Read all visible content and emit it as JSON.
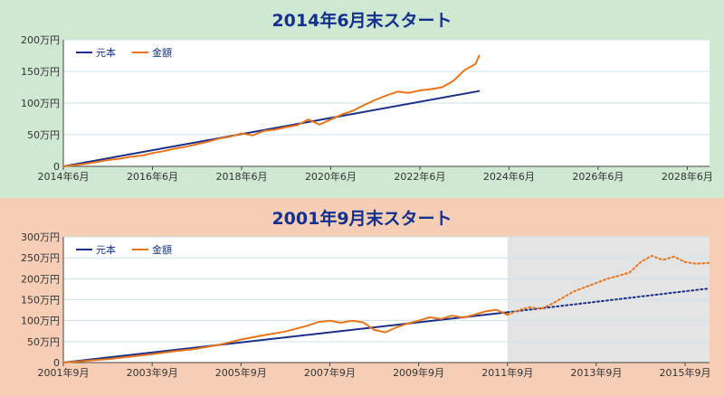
{
  "colors": {
    "principal": "#1b2f8a",
    "amount": "#e8751a",
    "panel1_bg": "#cfe8d2",
    "panel2_bg": "#f6cdb5",
    "forecast_bg": "#e4e4e4",
    "title": "#13308f"
  },
  "chart_data": [
    {
      "type": "line",
      "title": "2014年6月末スタート",
      "ylim": [
        0,
        200
      ],
      "yticks": [
        "0",
        "50万円",
        "100万円",
        "150万円",
        "200万円"
      ],
      "ytick_values": [
        0,
        50,
        100,
        150,
        200
      ],
      "xlim": [
        2014.5,
        2029.0
      ],
      "xticks": [
        "2014年6月",
        "2016年6月",
        "2018年6月",
        "2020年6月",
        "2022年6月",
        "2024年6月",
        "2026年6月",
        "2028年6月"
      ],
      "xtick_values": [
        2014.5,
        2016.5,
        2018.5,
        2020.5,
        2022.5,
        2024.5,
        2026.5,
        2028.5
      ],
      "grid": true,
      "legend": "top-left",
      "forecast_start": null,
      "series": [
        {
          "name": "元本",
          "color": "#1b2f8a",
          "style": "solid",
          "points": [
            [
              2014.5,
              0
            ],
            [
              2023.83,
              119
            ]
          ]
        },
        {
          "name": "金額",
          "color": "#e8751a",
          "style": "solid",
          "points": [
            [
              2014.5,
              0
            ],
            [
              2014.75,
              2
            ],
            [
              2015.0,
              4
            ],
            [
              2015.25,
              7
            ],
            [
              2015.5,
              10
            ],
            [
              2015.75,
              12
            ],
            [
              2016.0,
              15
            ],
            [
              2016.25,
              17
            ],
            [
              2016.5,
              21
            ],
            [
              2016.75,
              24
            ],
            [
              2017.0,
              28
            ],
            [
              2017.25,
              31
            ],
            [
              2017.5,
              35
            ],
            [
              2017.75,
              39
            ],
            [
              2018.0,
              44
            ],
            [
              2018.25,
              47
            ],
            [
              2018.5,
              52
            ],
            [
              2018.75,
              49
            ],
            [
              2019.0,
              56
            ],
            [
              2019.25,
              58
            ],
            [
              2019.5,
              62
            ],
            [
              2019.75,
              65
            ],
            [
              2020.0,
              74
            ],
            [
              2020.25,
              66
            ],
            [
              2020.5,
              74
            ],
            [
              2020.75,
              82
            ],
            [
              2021.0,
              88
            ],
            [
              2021.25,
              97
            ],
            [
              2021.5,
              105
            ],
            [
              2021.75,
              112
            ],
            [
              2022.0,
              118
            ],
            [
              2022.25,
              116
            ],
            [
              2022.5,
              120
            ],
            [
              2022.75,
              122
            ],
            [
              2023.0,
              125
            ],
            [
              2023.25,
              135
            ],
            [
              2023.5,
              152
            ],
            [
              2023.75,
              162
            ],
            [
              2023.83,
              175
            ]
          ]
        }
      ]
    },
    {
      "type": "line",
      "title": "2001年9月末スタート",
      "ylim": [
        0,
        300
      ],
      "yticks": [
        "0",
        "50万円",
        "100万円",
        "150万円",
        "200万円",
        "250万円",
        "300万円"
      ],
      "ytick_values": [
        0,
        50,
        100,
        150,
        200,
        250,
        300
      ],
      "xlim": [
        2001.75,
        2016.3
      ],
      "xticks": [
        "2001年9月",
        "2003年9月",
        "2005年9月",
        "2007年9月",
        "2009年9月",
        "2011年9月",
        "2013年9月",
        "2015年9月"
      ],
      "xtick_values": [
        2001.75,
        2003.75,
        2005.75,
        2007.75,
        2009.75,
        2011.75,
        2013.75,
        2015.75
      ],
      "grid": true,
      "legend": "top-left",
      "forecast_start": 2011.75,
      "series": [
        {
          "name": "元本",
          "color": "#1b2f8a",
          "style": "solid",
          "points": [
            [
              2001.75,
              0
            ],
            [
              2011.75,
              120
            ]
          ]
        },
        {
          "name": "金額",
          "color": "#e8751a",
          "style": "solid",
          "points": [
            [
              2001.75,
              0
            ],
            [
              2002.25,
              4
            ],
            [
              2002.75,
              8
            ],
            [
              2003.25,
              14
            ],
            [
              2003.75,
              20
            ],
            [
              2004.25,
              27
            ],
            [
              2004.75,
              33
            ],
            [
              2005.25,
              42
            ],
            [
              2005.75,
              55
            ],
            [
              2006.25,
              65
            ],
            [
              2006.75,
              74
            ],
            [
              2007.25,
              88
            ],
            [
              2007.5,
              97
            ],
            [
              2007.75,
              100
            ],
            [
              2008.0,
              95
            ],
            [
              2008.25,
              100
            ],
            [
              2008.5,
              96
            ],
            [
              2008.75,
              78
            ],
            [
              2009.0,
              72
            ],
            [
              2009.25,
              84
            ],
            [
              2009.5,
              93
            ],
            [
              2009.75,
              100
            ],
            [
              2010.0,
              108
            ],
            [
              2010.25,
              104
            ],
            [
              2010.5,
              112
            ],
            [
              2010.75,
              107
            ],
            [
              2011.0,
              114
            ],
            [
              2011.25,
              122
            ],
            [
              2011.5,
              126
            ],
            [
              2011.75,
              114
            ]
          ]
        },
        {
          "name": "元本",
          "color": "#1b2f8a",
          "style": "dotted",
          "points": [
            [
              2011.75,
              120
            ],
            [
              2016.3,
              177
            ]
          ]
        },
        {
          "name": "金額",
          "color": "#e8751a",
          "style": "dotted",
          "points": [
            [
              2011.75,
              114
            ],
            [
              2012.0,
              125
            ],
            [
              2012.25,
              132
            ],
            [
              2012.5,
              128
            ],
            [
              2012.75,
              140
            ],
            [
              2013.0,
              155
            ],
            [
              2013.25,
              170
            ],
            [
              2013.5,
              180
            ],
            [
              2013.75,
              190
            ],
            [
              2014.0,
              200
            ],
            [
              2014.25,
              207
            ],
            [
              2014.5,
              215
            ],
            [
              2014.75,
              240
            ],
            [
              2015.0,
              255
            ],
            [
              2015.25,
              245
            ],
            [
              2015.5,
              253
            ],
            [
              2015.75,
              240
            ],
            [
              2016.0,
              236
            ],
            [
              2016.3,
              238
            ]
          ]
        }
      ]
    }
  ]
}
